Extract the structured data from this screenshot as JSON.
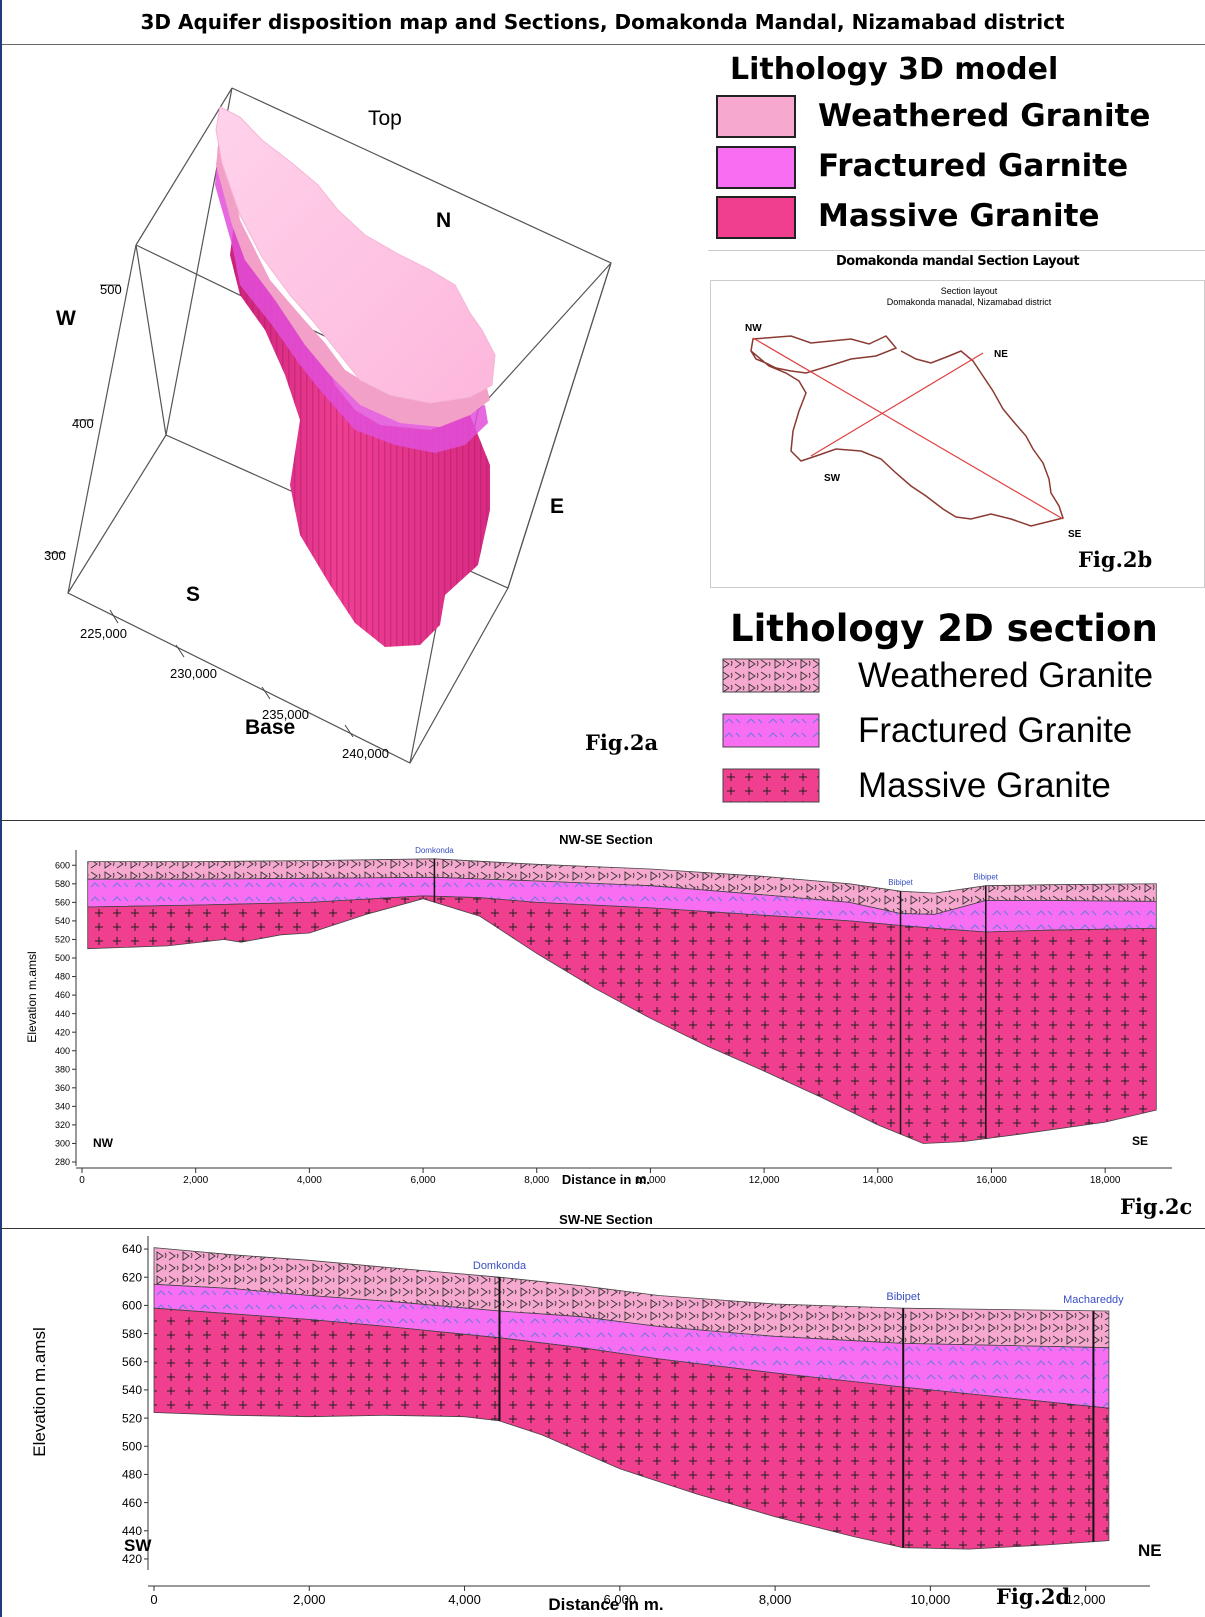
{
  "title": "3D Aquifer disposition map and Sections, Domakonda  Mandal, Nizamabad district",
  "model3d": {
    "labels": {
      "top": "Top",
      "n": "N",
      "w": "W",
      "e": "E",
      "s": "S",
      "base": "Base"
    },
    "z_ticks": [
      "500",
      "400",
      "300"
    ],
    "x_ticks": [
      "225,000",
      "230,000",
      "235,000",
      "240,000"
    ],
    "fig": "Fig.2a"
  },
  "legend3d": {
    "title": "Lithology 3D model",
    "items": [
      {
        "label": "Weathered Granite",
        "color": "#f7a8cf"
      },
      {
        "label": "Fractured Garnite",
        "color": "#f86ef2"
      },
      {
        "label": "Massive Granite",
        "color": "#ef3f8e"
      }
    ]
  },
  "layout_map": {
    "heading": "Domakonda mandal Section Layout",
    "inner_title_1": "Section layout",
    "inner_title_2": "Domakonda manadal, Nizamabad district",
    "points": {
      "nw": "NW",
      "ne": "NE",
      "sw": "SW",
      "se": "SE"
    },
    "fig": "Fig.2b"
  },
  "legend2d": {
    "title": "Lithology 2D section",
    "items": [
      {
        "label": "Weathered Granite",
        "color": "#f7a8cf"
      },
      {
        "label": "Fractured Granite",
        "color": "#f86ef2"
      },
      {
        "label": "Massive Granite",
        "color": "#ef3f8e"
      }
    ]
  },
  "section_nwse": {
    "title": "NW-SE Section",
    "ylabel": "Elevation m.amsl",
    "xlabel": "Distance in m.",
    "ylim": [
      280,
      610
    ],
    "xlim": [
      0,
      19000
    ],
    "yticks": [
      280,
      300,
      320,
      340,
      360,
      380,
      400,
      420,
      440,
      460,
      480,
      500,
      520,
      540,
      560,
      580,
      600
    ],
    "xticks": [
      0,
      2000,
      4000,
      6000,
      8000,
      10000,
      12000,
      14000,
      16000,
      18000
    ],
    "xtick_labels": [
      "0",
      "2,000",
      "4,000",
      "6,000",
      "8,000",
      "10,000",
      "12,000",
      "14,000",
      "16,000",
      "18,000"
    ],
    "end_left": "NW",
    "end_right": "SE",
    "wells": [
      {
        "name": "Domkonda",
        "x": 6200
      },
      {
        "name": "Bibipet",
        "x": 14400
      },
      {
        "name": "Bibipet",
        "x": 15900
      }
    ],
    "surface_top": [
      [
        100,
        604
      ],
      [
        2000,
        604
      ],
      [
        4000,
        605
      ],
      [
        6200,
        607
      ],
      [
        8000,
        601
      ],
      [
        10000,
        596
      ],
      [
        12000,
        588
      ],
      [
        13500,
        580
      ],
      [
        14400,
        572
      ],
      [
        15000,
        570
      ],
      [
        15900,
        578
      ],
      [
        17000,
        579
      ],
      [
        18900,
        580
      ]
    ],
    "weathered_base": [
      [
        100,
        585
      ],
      [
        2000,
        585
      ],
      [
        4000,
        586
      ],
      [
        6200,
        587
      ],
      [
        8000,
        583
      ],
      [
        10000,
        578
      ],
      [
        12000,
        568
      ],
      [
        13500,
        560
      ],
      [
        14400,
        548
      ],
      [
        15000,
        547
      ],
      [
        15900,
        562
      ],
      [
        17000,
        562
      ],
      [
        18900,
        561
      ]
    ],
    "fractured_base": [
      [
        100,
        555
      ],
      [
        2000,
        557
      ],
      [
        4000,
        560
      ],
      [
        6000,
        567
      ],
      [
        7000,
        565
      ],
      [
        8000,
        560
      ],
      [
        10000,
        554
      ],
      [
        12000,
        546
      ],
      [
        13500,
        540
      ],
      [
        14400,
        535
      ],
      [
        15000,
        532
      ],
      [
        15900,
        528
      ],
      [
        17000,
        530
      ],
      [
        18900,
        532
      ]
    ],
    "massive_base": [
      [
        100,
        510
      ],
      [
        1500,
        513
      ],
      [
        2500,
        520
      ],
      [
        2800,
        517
      ],
      [
        3500,
        525
      ],
      [
        4000,
        527
      ],
      [
        5000,
        547
      ],
      [
        6000,
        564
      ],
      [
        7000,
        545
      ],
      [
        8000,
        505
      ],
      [
        9000,
        468
      ],
      [
        10000,
        435
      ],
      [
        11000,
        405
      ],
      [
        12000,
        378
      ],
      [
        13000,
        350
      ],
      [
        14000,
        320
      ],
      [
        14800,
        300
      ],
      [
        15500,
        302
      ],
      [
        16500,
        310
      ],
      [
        18000,
        323
      ],
      [
        18900,
        336
      ]
    ],
    "fig": "Fig.2c"
  },
  "section_swne": {
    "title": "SW-NE Section",
    "ylabel": "Elevation m.amsl",
    "xlabel": "Distance in m.",
    "ylim": [
      415,
      645
    ],
    "xlim": [
      0,
      12700
    ],
    "yticks": [
      420,
      440,
      460,
      480,
      500,
      520,
      540,
      560,
      580,
      600,
      620,
      640
    ],
    "xticks": [
      0,
      2000,
      4000,
      6000,
      8000,
      10000,
      12000
    ],
    "xtick_labels": [
      "0",
      "2,000",
      "4,000",
      "6,000",
      "8,000",
      "10,000",
      "12,000"
    ],
    "end_left": "SW",
    "end_right": "NE",
    "wells": [
      {
        "name": "Domkonda",
        "x": 4450
      },
      {
        "name": "Bibipet",
        "x": 9650
      },
      {
        "name": "Machareddy",
        "x": 12100
      }
    ],
    "surface_top": [
      [
        0,
        641
      ],
      [
        1000,
        636
      ],
      [
        2000,
        632
      ],
      [
        3000,
        627
      ],
      [
        4450,
        620
      ],
      [
        5500,
        614
      ],
      [
        6500,
        607
      ],
      [
        8000,
        601
      ],
      [
        9650,
        598
      ],
      [
        12300,
        596
      ]
    ],
    "weathered_base": [
      [
        0,
        615
      ],
      [
        1000,
        612
      ],
      [
        2000,
        607
      ],
      [
        3000,
        603
      ],
      [
        4450,
        596
      ],
      [
        5500,
        592
      ],
      [
        6500,
        585
      ],
      [
        8000,
        578
      ],
      [
        9650,
        573
      ],
      [
        12300,
        570
      ]
    ],
    "fractured_base": [
      [
        0,
        598
      ],
      [
        1000,
        594
      ],
      [
        2000,
        590
      ],
      [
        3000,
        585
      ],
      [
        4450,
        577
      ],
      [
        5500,
        570
      ],
      [
        6500,
        562
      ],
      [
        8000,
        552
      ],
      [
        9650,
        542
      ],
      [
        12300,
        527
      ]
    ],
    "massive_base": [
      [
        0,
        524
      ],
      [
        1000,
        522
      ],
      [
        2000,
        521
      ],
      [
        3000,
        522
      ],
      [
        4000,
        521
      ],
      [
        4450,
        518
      ],
      [
        5000,
        508
      ],
      [
        6000,
        484
      ],
      [
        7000,
        466
      ],
      [
        8000,
        450
      ],
      [
        9000,
        436
      ],
      [
        9650,
        428
      ],
      [
        10500,
        427
      ],
      [
        11500,
        430
      ],
      [
        12300,
        433
      ]
    ],
    "fig": "Fig.2d"
  }
}
